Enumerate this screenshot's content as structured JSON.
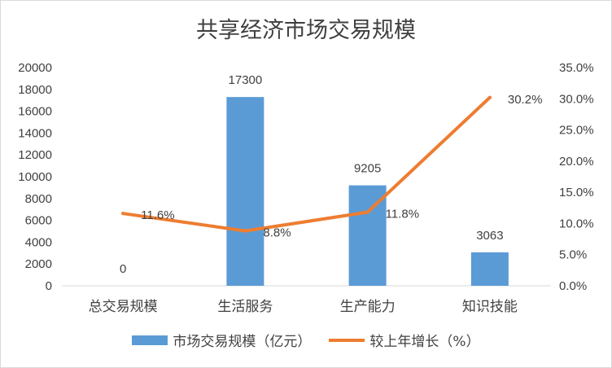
{
  "colors": {
    "bar": "#5b9bd5",
    "line": "#ed7d31",
    "axis": "#d9d9d9"
  },
  "chart_data": {
    "type": "bar",
    "title": "共享经济市场交易规模",
    "categories": [
      "总交易规模",
      "生活服务",
      "生产能力",
      "知识技能"
    ],
    "series": [
      {
        "name": "市场交易规模（亿元）",
        "type": "bar",
        "axis": "left",
        "values": [
          0,
          17300,
          9205,
          3063
        ],
        "labels": [
          "0",
          "17300",
          "9205",
          "3063"
        ]
      },
      {
        "name": "较上年增长（%）",
        "type": "line",
        "axis": "right",
        "values": [
          11.6,
          8.8,
          11.8,
          30.2
        ],
        "labels": [
          "11.6%",
          "8.8%",
          "11.8%",
          "30.2%"
        ]
      }
    ],
    "y_left": {
      "min": 0,
      "max": 20000,
      "ticks": [
        "0",
        "2000",
        "4000",
        "6000",
        "8000",
        "10000",
        "12000",
        "14000",
        "16000",
        "18000",
        "20000"
      ]
    },
    "y_right": {
      "min": 0,
      "max": 35,
      "ticks": [
        "0.0%",
        "5.0%",
        "10.0%",
        "15.0%",
        "20.0%",
        "25.0%",
        "30.0%",
        "35.0%"
      ]
    },
    "grid": false,
    "legend": "bottom"
  }
}
